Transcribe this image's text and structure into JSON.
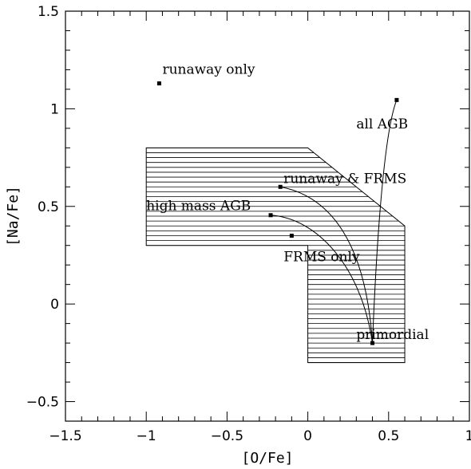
{
  "chart_data": {
    "type": "scatter",
    "title": "",
    "xlabel": "[O/Fe]",
    "ylabel": "[Na/Fe]",
    "xlim": [
      -1.5,
      1
    ],
    "ylim": [
      -0.6,
      1.5
    ],
    "x_major_ticks": [
      -1.5,
      -1,
      -0.5,
      0,
      0.5,
      1
    ],
    "x_tick_labels": [
      "−1.5",
      "−1",
      "−0.5",
      "0",
      "0.5",
      "1"
    ],
    "x_minor_step": 0.1,
    "y_major_ticks": [
      -0.5,
      0,
      0.5,
      1,
      1.5
    ],
    "y_tick_labels": [
      "−0.5",
      "0",
      "0.5",
      "1",
      "1.5"
    ],
    "y_minor_step": 0.1,
    "grid": false,
    "region": {
      "polygon": [
        [
          -1.0,
          0.8
        ],
        [
          0.0,
          0.8
        ],
        [
          0.6,
          0.4
        ],
        [
          0.6,
          -0.3
        ],
        [
          0.0,
          -0.3
        ],
        [
          0.0,
          0.3
        ],
        [
          -1.0,
          0.3
        ]
      ],
      "hatch_spacing": 0.025
    },
    "points": [
      {
        "x": -0.92,
        "y": 1.13
      },
      {
        "x": 0.55,
        "y": 1.045
      },
      {
        "x": -0.17,
        "y": 0.6
      },
      {
        "x": -0.23,
        "y": 0.455
      },
      {
        "x": -0.1,
        "y": 0.35
      },
      {
        "x": 0.4,
        "y": -0.2
      }
    ],
    "curves": [
      {
        "from": [
          0.4,
          -0.2
        ],
        "to": [
          0.55,
          1.045
        ],
        "c1": [
          0.43,
          0.42
        ],
        "c2": [
          0.48,
          0.9
        ]
      },
      {
        "from": [
          0.4,
          -0.2
        ],
        "to": [
          -0.17,
          0.6
        ],
        "c1": [
          0.36,
          0.3
        ],
        "c2": [
          0.15,
          0.55
        ]
      },
      {
        "from": [
          0.4,
          -0.2
        ],
        "to": [
          -0.23,
          0.455
        ],
        "c1": [
          0.33,
          0.2
        ],
        "c2": [
          0.05,
          0.44
        ]
      }
    ],
    "annotations": [
      {
        "text": "runaway only",
        "x": -0.9,
        "y": 1.18
      },
      {
        "text": "all AGB",
        "x": 0.3,
        "y": 0.9
      },
      {
        "text": "runaway & FRMS",
        "x": -0.15,
        "y": 0.62
      },
      {
        "text": "high mass AGB",
        "x": -1.0,
        "y": 0.48
      },
      {
        "text": "FRMS only",
        "x": -0.15,
        "y": 0.22
      },
      {
        "text": "primordial",
        "x": 0.3,
        "y": -0.18
      }
    ]
  }
}
